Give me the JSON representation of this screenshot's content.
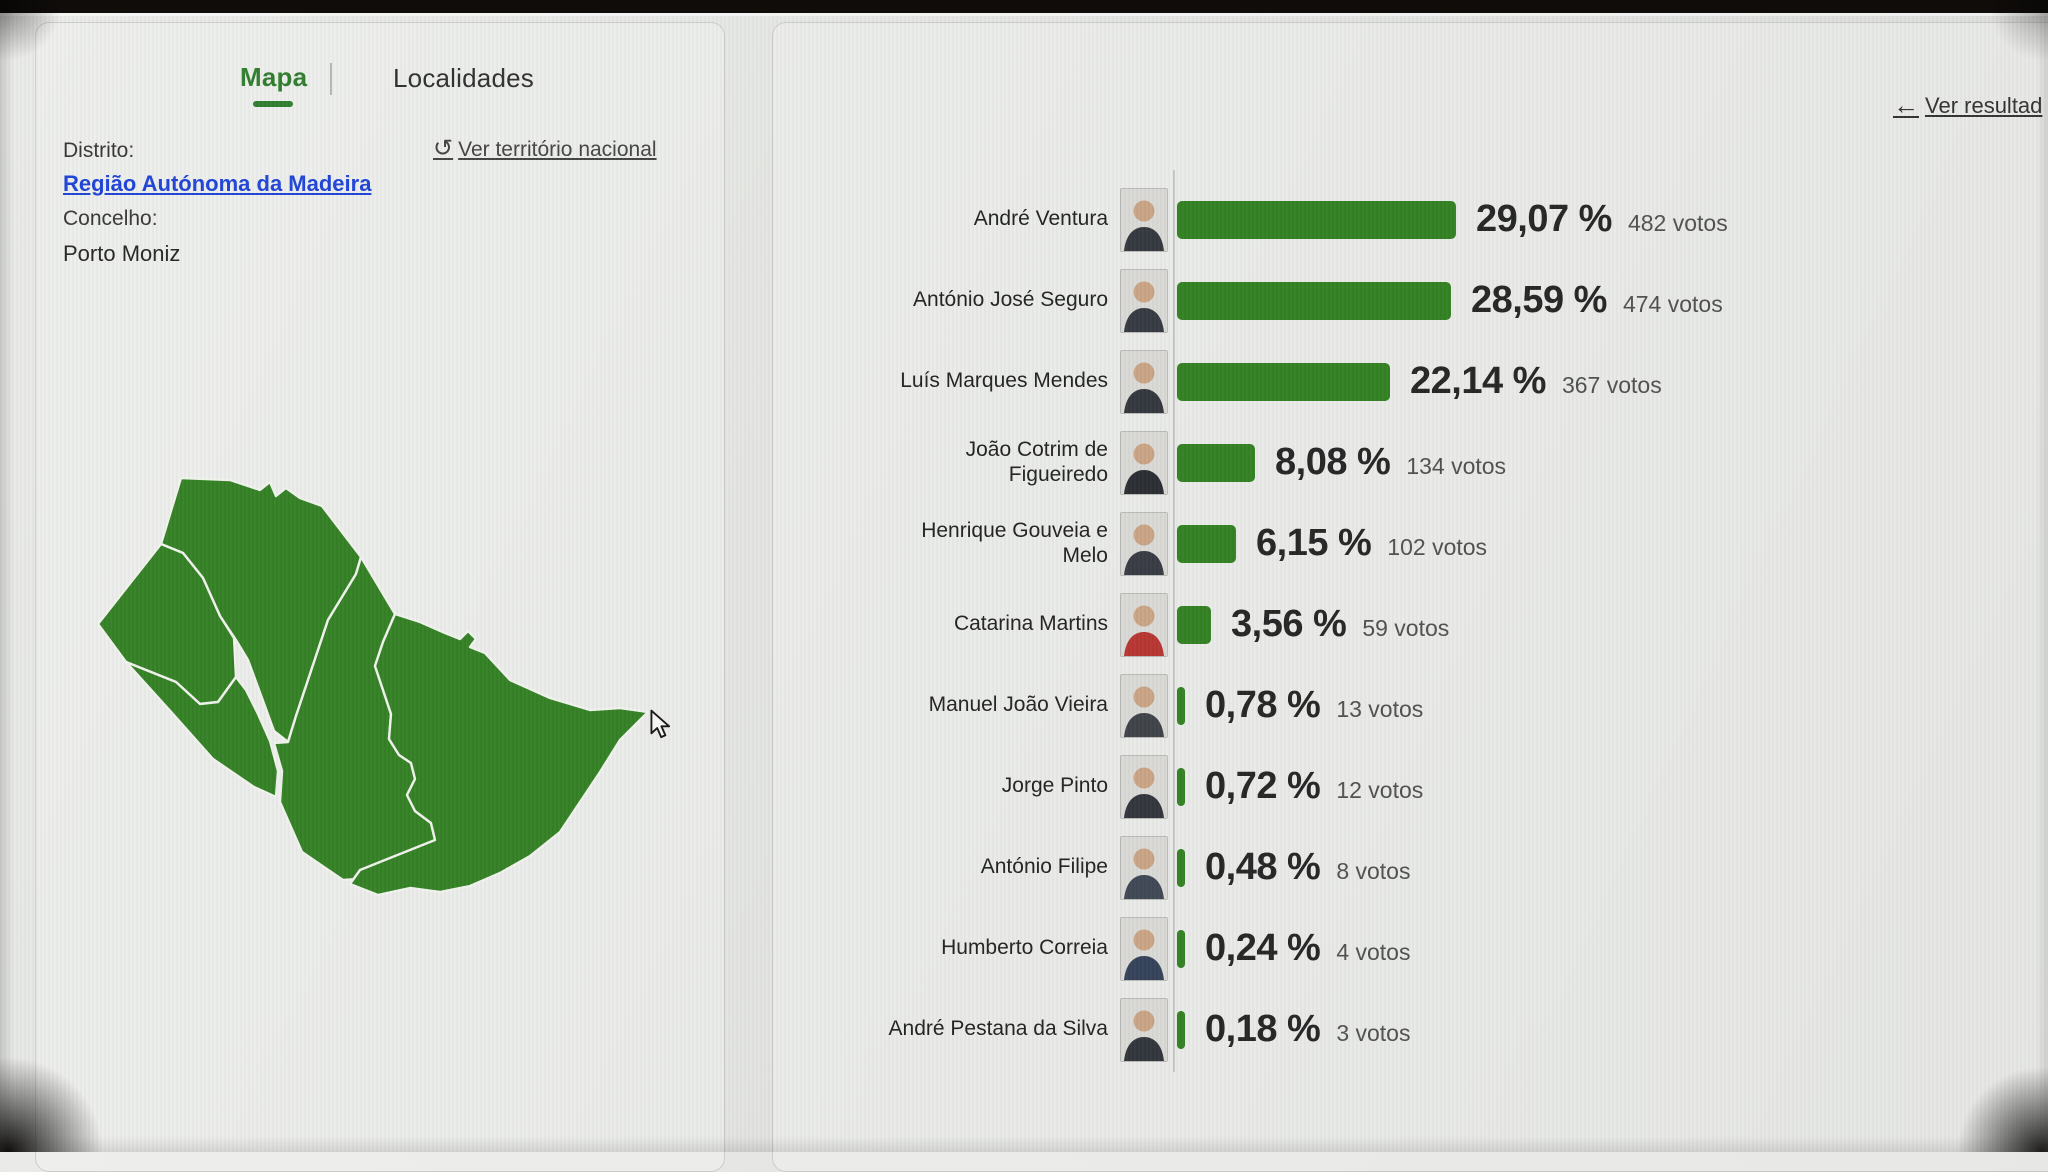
{
  "page": {
    "bezel_color": "#0f0c0a",
    "background": "#e3e3e1"
  },
  "tabs": {
    "items": [
      {
        "label": "Mapa",
        "active": true
      },
      {
        "label": "Localidades",
        "active": false
      }
    ]
  },
  "back_link": {
    "label": "Ver resultad",
    "icon": "arrow-left-icon",
    "arrow": "←"
  },
  "filters": {
    "district_label": "Distrito:",
    "district_value": "Região Autónoma da Madeira",
    "municipality_label": "Concelho:",
    "municipality_value": "Porto Moniz"
  },
  "reset_link": {
    "label": "Ver território nacional",
    "icon": "restore-icon",
    "glyph": "↺"
  },
  "colors": {
    "green": "#2e7d1e",
    "tab_green": "#2b7a28",
    "link_blue": "#1a3fd6",
    "axis_line": "#c6c6c4",
    "map_fill": "#2f7d20",
    "map_border": "#f0f2ec"
  },
  "map": {
    "municipality": "Porto Moniz",
    "subregion_count": 4
  },
  "chart_data": {
    "type": "bar",
    "orientation": "horizontal",
    "unit": "votos",
    "legend": false,
    "xlim": [
      0,
      100
    ],
    "categories": [
      "André Ventura",
      "António José Seguro",
      "Luís Marques Mendes",
      "João Cotrim de Figueiredo",
      "Henrique Gouveia e Melo",
      "Catarina Martins",
      "Manuel João Vieira",
      "Jorge Pinto",
      "António Filipe",
      "Humberto Correia",
      "André Pestana da Silva"
    ],
    "series": [
      {
        "name": "percentagem",
        "values": [
          29.07,
          28.59,
          22.14,
          8.08,
          6.15,
          3.56,
          0.78,
          0.72,
          0.48,
          0.24,
          0.18
        ]
      },
      {
        "name": "votos",
        "values": [
          482,
          474,
          367,
          134,
          102,
          59,
          13,
          12,
          8,
          4,
          3
        ]
      }
    ],
    "rows": [
      {
        "name": "André Ventura",
        "percent": 29.07,
        "percent_label": "29,07 %",
        "votes": 482,
        "votes_label": "482 votos",
        "photo_suit": "#30333b"
      },
      {
        "name": "António José Seguro",
        "percent": 28.59,
        "percent_label": "28,59 %",
        "votes": 474,
        "votes_label": "474 votos",
        "photo_suit": "#32353d"
      },
      {
        "name": "Luís Marques Mendes",
        "percent": 22.14,
        "percent_label": "22,14 %",
        "votes": 367,
        "votes_label": "367 votos",
        "photo_suit": "#2e3138"
      },
      {
        "name": "João Cotrim de\nFigueiredo",
        "percent": 8.08,
        "percent_label": "8,08 %",
        "votes": 134,
        "votes_label": "134 votos",
        "photo_suit": "#26282e"
      },
      {
        "name": "Henrique Gouveia e\nMelo",
        "percent": 6.15,
        "percent_label": "6,15 %",
        "votes": 102,
        "votes_label": "102 votos",
        "photo_suit": "#33363e"
      },
      {
        "name": "Catarina Martins",
        "percent": 3.56,
        "percent_label": "3,56 %",
        "votes": 59,
        "votes_label": "59 votos",
        "photo_suit": "#b5302c"
      },
      {
        "name": "Manuel João Vieira",
        "percent": 0.78,
        "percent_label": "0,78 %",
        "votes": 13,
        "votes_label": "13 votos",
        "photo_suit": "#3a3d43"
      },
      {
        "name": "Jorge Pinto",
        "percent": 0.72,
        "percent_label": "0,72 %",
        "votes": 12,
        "votes_label": "12 votos",
        "photo_suit": "#2d3037"
      },
      {
        "name": "António Filipe",
        "percent": 0.48,
        "percent_label": "0,48 %",
        "votes": 8,
        "votes_label": "8 votos",
        "photo_suit": "#3b4250"
      },
      {
        "name": "Humberto Correia",
        "percent": 0.24,
        "percent_label": "0,24 %",
        "votes": 4,
        "votes_label": "4 votos",
        "photo_suit": "#2f3d55"
      },
      {
        "name": "André Pestana da Silva",
        "percent": 0.18,
        "percent_label": "0,18 %",
        "votes": 3,
        "votes_label": "3 votos",
        "photo_suit": "#2c2f36"
      }
    ]
  }
}
